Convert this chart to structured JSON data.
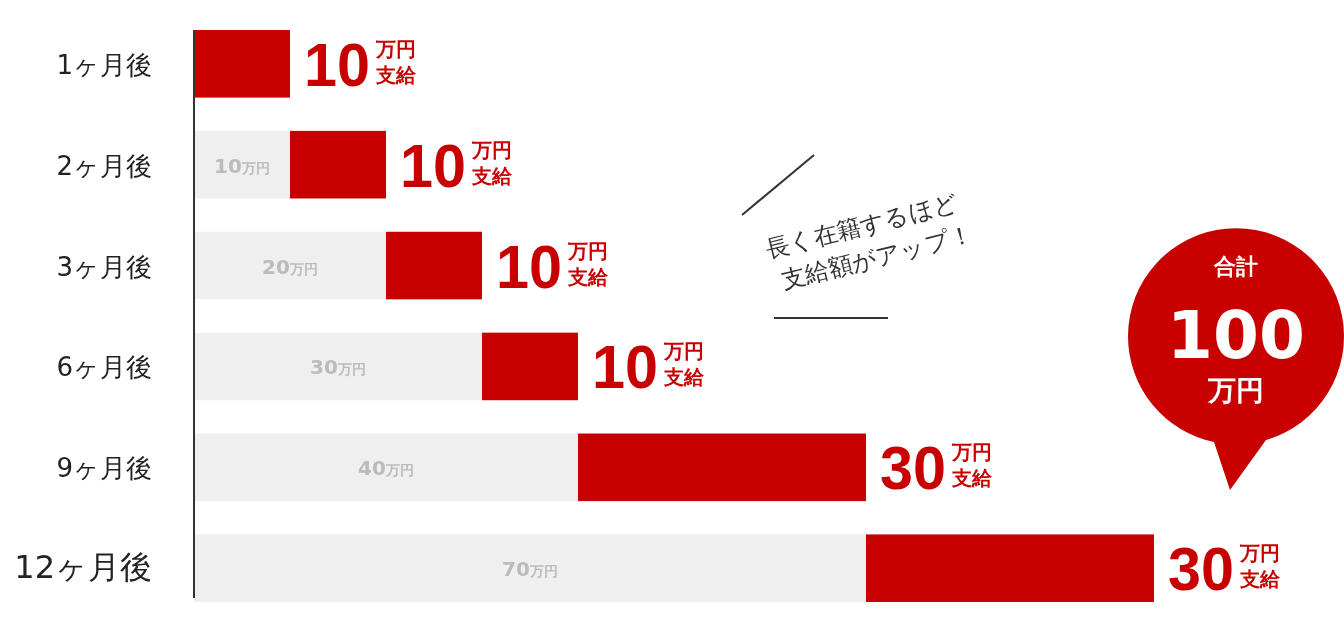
{
  "chart_data": {
    "type": "bar",
    "orientation": "horizontal",
    "stacked": true,
    "categories": [
      "1ヶ月後",
      "2ヶ月後",
      "3ヶ月後",
      "6ヶ月後",
      "9ヶ月後",
      "12ヶ月後"
    ],
    "series": [
      {
        "color": "#efefef",
        "values": [
          null,
          10,
          20,
          30,
          40,
          70
        ],
        "value_labels": [
          null,
          "10万円",
          "20万円",
          "30万円",
          "40万円",
          "70万円"
        ]
      },
      {
        "color": "#c80000",
        "values": [
          10,
          10,
          10,
          10,
          30,
          30
        ],
        "value_labels": [
          "10万円支給",
          "10万円支給",
          "10万円支給",
          "10万円支給",
          "30万円支給",
          "30万円支給"
        ]
      }
    ],
    "annotations": [
      "長く在籍するほど\n支給額がアップ！",
      "合計\n100\n万円"
    ]
  }
}
